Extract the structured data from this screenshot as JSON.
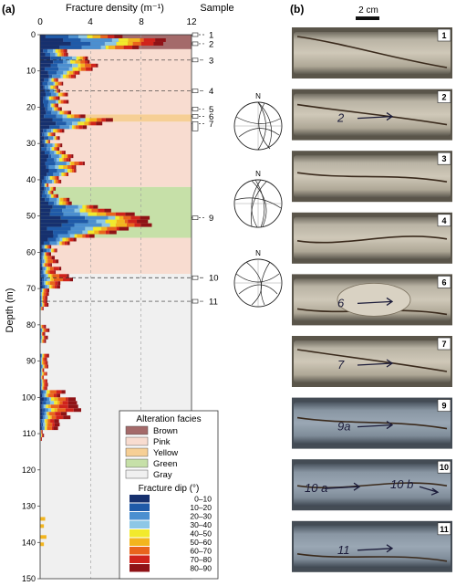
{
  "panel_a": {
    "label": "(a)",
    "x_axis_title": "Fracture density (m⁻¹)",
    "x_ticks": [
      "0",
      "4",
      "8",
      "12"
    ],
    "sample_header": "Sample",
    "y_axis_title": "Depth (m)",
    "y_ticks": [
      "0",
      "10",
      "20",
      "30",
      "40",
      "50",
      "60",
      "70",
      "80",
      "90",
      "100",
      "110",
      "120",
      "130",
      "140",
      "150"
    ],
    "facies_bands": [
      {
        "from": 0,
        "to": 4,
        "facies": "Brown"
      },
      {
        "from": 4,
        "to": 22,
        "facies": "Pink"
      },
      {
        "from": 22,
        "to": 24,
        "facies": "Yellow"
      },
      {
        "from": 24,
        "to": 42,
        "facies": "Pink"
      },
      {
        "from": 42,
        "to": 56,
        "facies": "Green"
      },
      {
        "from": 56,
        "to": 66,
        "facies": "Pink"
      },
      {
        "from": 66,
        "to": 150,
        "facies": "Gray"
      }
    ],
    "samples": [
      {
        "label": "1",
        "depth": 0
      },
      {
        "label": "2",
        "depth": 2.5
      },
      {
        "label": "3",
        "depth": 7
      },
      {
        "label": "4",
        "depth": 15.5
      },
      {
        "label": "5",
        "depth": 20.5
      },
      {
        "label": "6",
        "depth": 22.5
      },
      {
        "label": "7",
        "depth": 24.5
      },
      {
        "label": "9",
        "depth": 50.5
      },
      {
        "label": "10",
        "depth": 67
      },
      {
        "label": "11",
        "depth": 73.5
      }
    ],
    "stereonet_north": "N",
    "legend": {
      "facies_title": "Alteration facies",
      "facies": [
        {
          "name": "Brown",
          "color": "#a46a6a"
        },
        {
          "name": "Pink",
          "color": "#f8dcd0"
        },
        {
          "name": "Yellow",
          "color": "#f6cf95"
        },
        {
          "name": "Green",
          "color": "#c6e0a8"
        },
        {
          "name": "Gray",
          "color": "#f0f0f0"
        }
      ],
      "dip_title": "Fracture dip (°)",
      "dips": [
        {
          "range": "0–10",
          "color": "#16306e"
        },
        {
          "range": "10–20",
          "color": "#1f5aa8"
        },
        {
          "range": "20–30",
          "color": "#4b8fd0"
        },
        {
          "range": "30–40",
          "color": "#8dc7e6"
        },
        {
          "range": "40–50",
          "color": "#f2ea2c"
        },
        {
          "range": "50–60",
          "color": "#f3b51e"
        },
        {
          "range": "60–70",
          "color": "#e9641c"
        },
        {
          "range": "70–80",
          "color": "#d0231b"
        },
        {
          "range": "80–90",
          "color": "#8f1216"
        }
      ]
    }
  },
  "panel_b": {
    "label": "(b)",
    "scale_label": "2 cm",
    "photos": [
      {
        "id": "1",
        "annotation": ""
      },
      {
        "id": "2",
        "annotation": "2"
      },
      {
        "id": "3",
        "annotation": ""
      },
      {
        "id": "4",
        "annotation": ""
      },
      {
        "id": "6",
        "annotation": "6"
      },
      {
        "id": "7",
        "annotation": "7"
      },
      {
        "id": "9",
        "annotation": "9a"
      },
      {
        "id": "10",
        "annotation": "10 a",
        "annotation2": "10 b"
      },
      {
        "id": "11",
        "annotation": "11"
      }
    ]
  }
}
